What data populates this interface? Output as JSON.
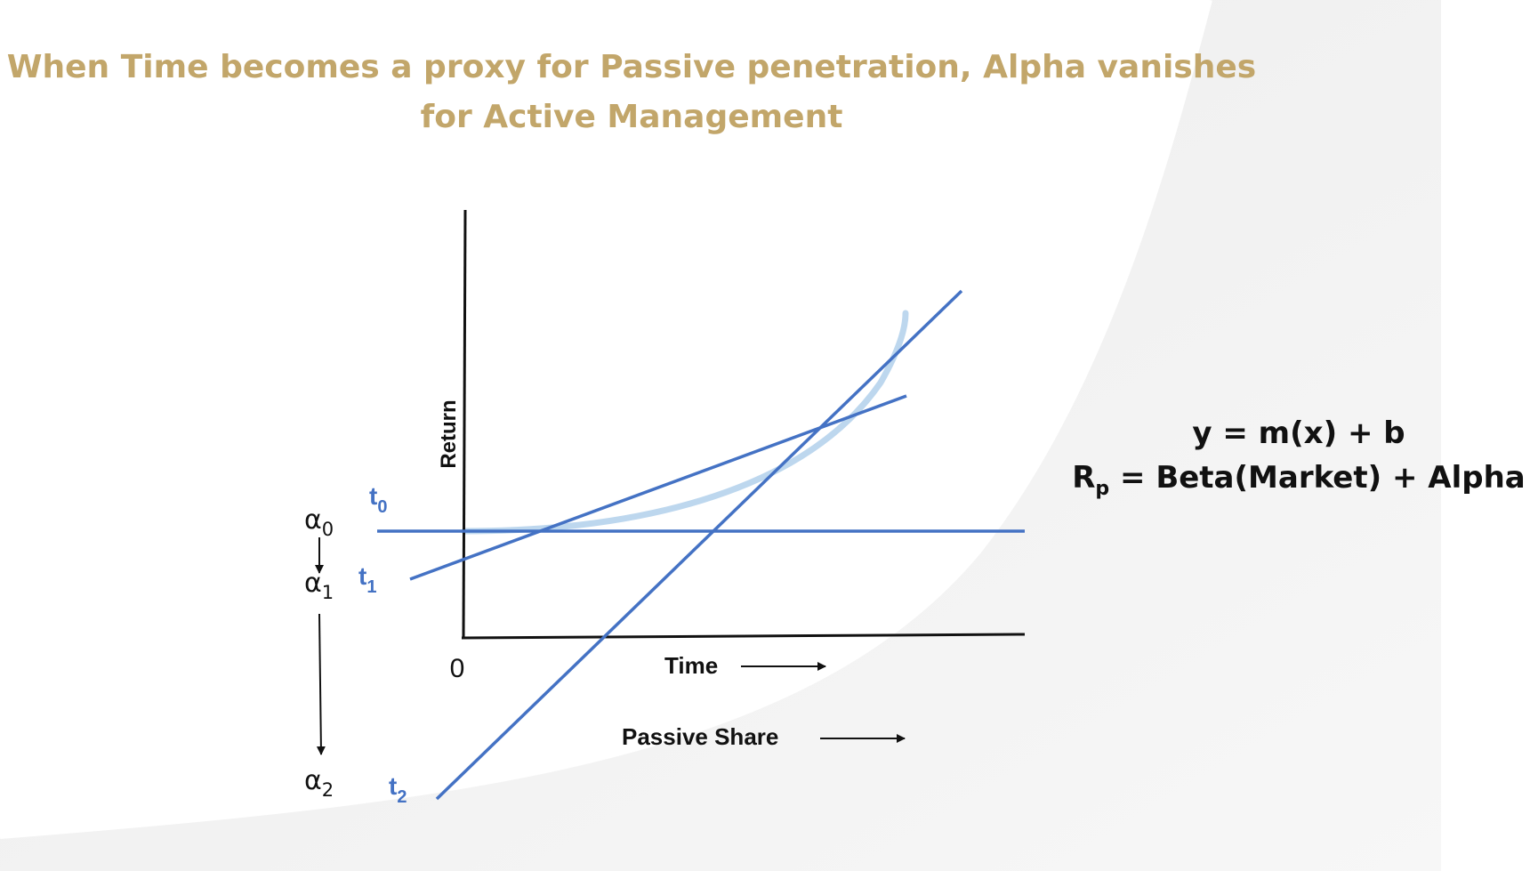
{
  "title": {
    "line1": "When Time becomes a proxy for Passive penetration, Alpha vanishes",
    "line2": "for Active Management"
  },
  "axes": {
    "y_label": "Return",
    "x_label": "Time",
    "x_label_2": "Passive Share",
    "origin": "0"
  },
  "lines": [
    {
      "name": "t",
      "subscript": "0"
    },
    {
      "name": "t",
      "subscript": "1"
    },
    {
      "name": "t",
      "subscript": "2"
    }
  ],
  "alphas": [
    {
      "symbol": "α",
      "subscript": "0"
    },
    {
      "symbol": "α",
      "subscript": "1"
    },
    {
      "symbol": "α",
      "subscript": "2"
    }
  ],
  "equations": {
    "line1": "y = m(x) + b",
    "line2_main": "R",
    "line2_sub": "p",
    "line2_rest": " = Beta(Market) + Alpha"
  },
  "colors": {
    "title": "#c2a66a",
    "lines": "#4472c4",
    "curve": "#bdd7ee",
    "axes": "#111111"
  }
}
